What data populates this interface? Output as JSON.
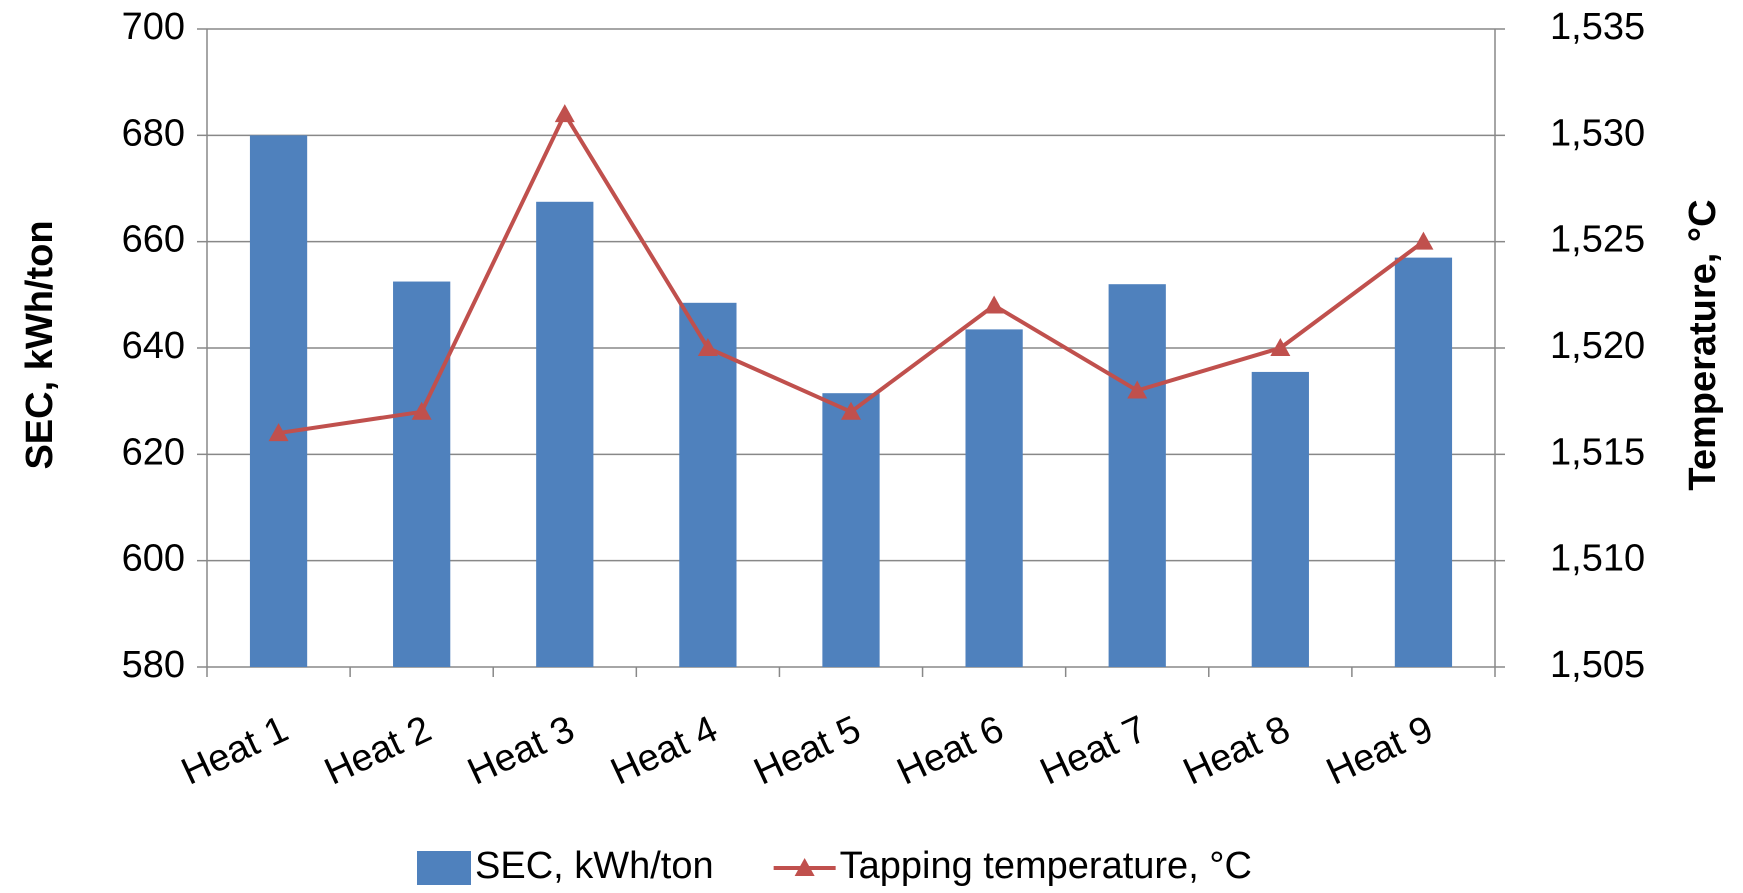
{
  "chart_data": {
    "type": "bar-line",
    "categories": [
      "Heat 1",
      "Heat 2",
      "Heat 3",
      "Heat 4",
      "Heat 5",
      "Heat 6",
      "Heat 7",
      "Heat 8",
      "Heat 9"
    ],
    "series": [
      {
        "name": "SEC, kWh/ton",
        "color": "#4f81bd",
        "type": "bar",
        "values": [
          680,
          652.5,
          667.5,
          648.5,
          631.5,
          643.5,
          652,
          635.5,
          657
        ]
      },
      {
        "name": "Tapping temperature, °C",
        "color": "#c0504d",
        "type": "line",
        "axis": "y2",
        "marker": "triangle",
        "values": [
          1516,
          1517,
          1531,
          1520,
          1517,
          1522,
          1518,
          1520,
          1525
        ]
      }
    ],
    "ylabel": "SEC, kWh/ton",
    "y2label": "Temperature, °C",
    "ylim": [
      580,
      700
    ],
    "yticks": [
      580,
      600,
      620,
      640,
      660,
      680,
      700
    ],
    "y2lim": [
      1505,
      1535
    ],
    "y2ticks": [
      {
        "value": 1505,
        "label": "1,505"
      },
      {
        "value": 1510,
        "label": "1,510"
      },
      {
        "value": 1515,
        "label": "1,515"
      },
      {
        "value": 1520,
        "label": "1,520"
      },
      {
        "value": 1525,
        "label": "1,525"
      },
      {
        "value": 1530,
        "label": "1,530"
      },
      {
        "value": 1535,
        "label": "1,535"
      }
    ],
    "grid": true,
    "legend": "bottom"
  }
}
